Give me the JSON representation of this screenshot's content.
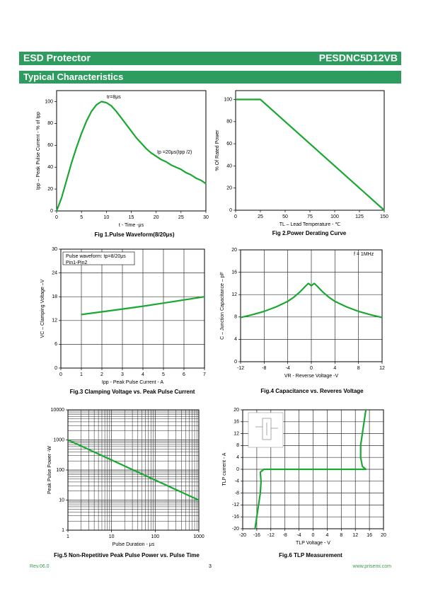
{
  "header": {
    "left": "ESD Protector",
    "right": "PESDNC5D12VB"
  },
  "section_title": "Typical Characteristics",
  "chart_data": [
    {
      "type": "line",
      "title": "Fig 1.Pulse Waveform(8/20μs)",
      "xlabel": "t - Time -μs",
      "ylabel": "Ipp – Peak Pulse Current - % of Ipp",
      "x": [
        0,
        1,
        2,
        3,
        4,
        5,
        6,
        7,
        8,
        9,
        10,
        11,
        12,
        13,
        14,
        15,
        16,
        17,
        18,
        19,
        20,
        21,
        22,
        23,
        24,
        25,
        26,
        27,
        28,
        29,
        30
      ],
      "series": [
        {
          "color": "#1aa832",
          "values": [
            0,
            12,
            28,
            44,
            58,
            71,
            82,
            91,
            97,
            100,
            99,
            96,
            91,
            85,
            79,
            73,
            67,
            62,
            57,
            53,
            50,
            47,
            45,
            42,
            40,
            38,
            35,
            33,
            30,
            28,
            25
          ]
        }
      ],
      "xlim": [
        0,
        30
      ],
      "ylim": [
        0,
        110
      ],
      "xticks": [
        0,
        5,
        10,
        15,
        20,
        25,
        30
      ],
      "yticks": [
        0,
        20,
        40,
        60,
        80,
        100
      ],
      "grid": false,
      "annotations": [
        "tr=8μs",
        "Ip =20μs(Ipp /2)"
      ]
    },
    {
      "type": "line",
      "title": "Fig 2.Power Derating Curve",
      "xlabel": "TL – Lead Temperature - ℃",
      "ylabel": "% Of Rated Power",
      "x": [
        0,
        25,
        150
      ],
      "series": [
        {
          "color": "#1aa832",
          "values": [
            100,
            100,
            0
          ]
        }
      ],
      "xlim": [
        0,
        150
      ],
      "ylim": [
        0,
        108
      ],
      "xticks": [
        0,
        25,
        50,
        75,
        100,
        125,
        150
      ],
      "yticks": [
        0,
        20,
        40,
        60,
        80,
        100
      ],
      "grid": false
    },
    {
      "type": "line",
      "title": "Fig.3 Clamping Voltage vs. Peak Pulse Current",
      "xlabel": "Ipp - Peak Pulse Current - A",
      "ylabel": "VC – Clamping Voltage –V",
      "x": [
        1,
        2,
        3,
        4,
        5,
        6,
        7
      ],
      "series": [
        {
          "color": "#1aa832",
          "values": [
            13.5,
            14.2,
            14.9,
            15.6,
            16.4,
            17.2,
            18
          ]
        }
      ],
      "xlim": [
        0,
        7
      ],
      "ylim": [
        0,
        30
      ],
      "xticks": [
        0,
        1,
        2,
        3,
        4,
        5,
        6,
        7
      ],
      "yticks": [
        0,
        6,
        12,
        18,
        24,
        30
      ],
      "grid": true,
      "annotations": [
        "Pulse waveform: tp=8/20μs",
        "Pin1-Pin2"
      ]
    },
    {
      "type": "line",
      "title": "Fig.4 Capacitance vs. Reveres Voltage",
      "xlabel": "VR - Reverse Voltage -V",
      "ylabel": "C – Junction Capacitance – pF",
      "x": [
        -12,
        -10,
        -8,
        -6,
        -4,
        -3,
        -2,
        -1,
        -0.5,
        0,
        0.5,
        1,
        2,
        3,
        4,
        6,
        8,
        10,
        12
      ],
      "series": [
        {
          "color": "#1aa832",
          "values": [
            7.9,
            8.4,
            9,
            9.8,
            10.8,
            11.5,
            12.4,
            13.5,
            14,
            13.6,
            14,
            13.5,
            12.4,
            11.5,
            10.8,
            9.8,
            9,
            8.4,
            7.9
          ]
        }
      ],
      "xlim": [
        -12,
        12
      ],
      "ylim": [
        0,
        20
      ],
      "xticks": [
        -12,
        -8,
        -4,
        0,
        4,
        8,
        12
      ],
      "yticks": [
        0,
        4,
        8,
        12,
        16,
        20
      ],
      "grid": true,
      "annotations": [
        "f = 1MHz"
      ]
    },
    {
      "type": "line",
      "title": "Fig.5 Non-Repetitive Peak Pulse Power vs. Pulse Time",
      "xlabel": "Pulse Duration - μs",
      "ylabel": "Peak Pulse Power -W",
      "x": [
        1,
        10,
        100,
        1000
      ],
      "series": [
        {
          "color": "#1aa832",
          "values": [
            1000,
            215,
            46,
            10
          ]
        }
      ],
      "xlim": [
        1,
        1000
      ],
      "ylim": [
        1,
        10000
      ],
      "xticks": [
        1,
        10,
        100,
        1000
      ],
      "yticks": [
        1,
        10,
        100,
        1000,
        10000
      ],
      "grid": true,
      "log_x": true,
      "log_y": true
    },
    {
      "type": "line",
      "title": "Fig.6 TLP Measurement",
      "xlabel": "TLP Voltage - V",
      "ylabel": "TLP current - A",
      "x": [
        -16.5,
        -16,
        -15.5,
        -15,
        -14.8,
        -15,
        -14,
        0,
        15,
        14,
        13.5,
        13.5,
        14,
        14.5,
        15
      ],
      "series": [
        {
          "color": "#1aa832",
          "values": [
            -20,
            -16,
            -12,
            -8,
            -4,
            -1,
            0,
            0,
            0,
            1,
            4,
            8,
            12,
            16,
            20
          ]
        }
      ],
      "xlim": [
        -20,
        20
      ],
      "ylim": [
        -20,
        20
      ],
      "xticks": [
        -20,
        -16,
        -12,
        -8,
        -4,
        0,
        4,
        8,
        12,
        16,
        20
      ],
      "yticks": [
        -20,
        -16,
        -12,
        -8,
        -4,
        0,
        4,
        8,
        12,
        16,
        20
      ],
      "grid": true
    }
  ],
  "footer": {
    "revision": "Rev.06.0",
    "page": "3",
    "website": "www.prisemi.com"
  }
}
